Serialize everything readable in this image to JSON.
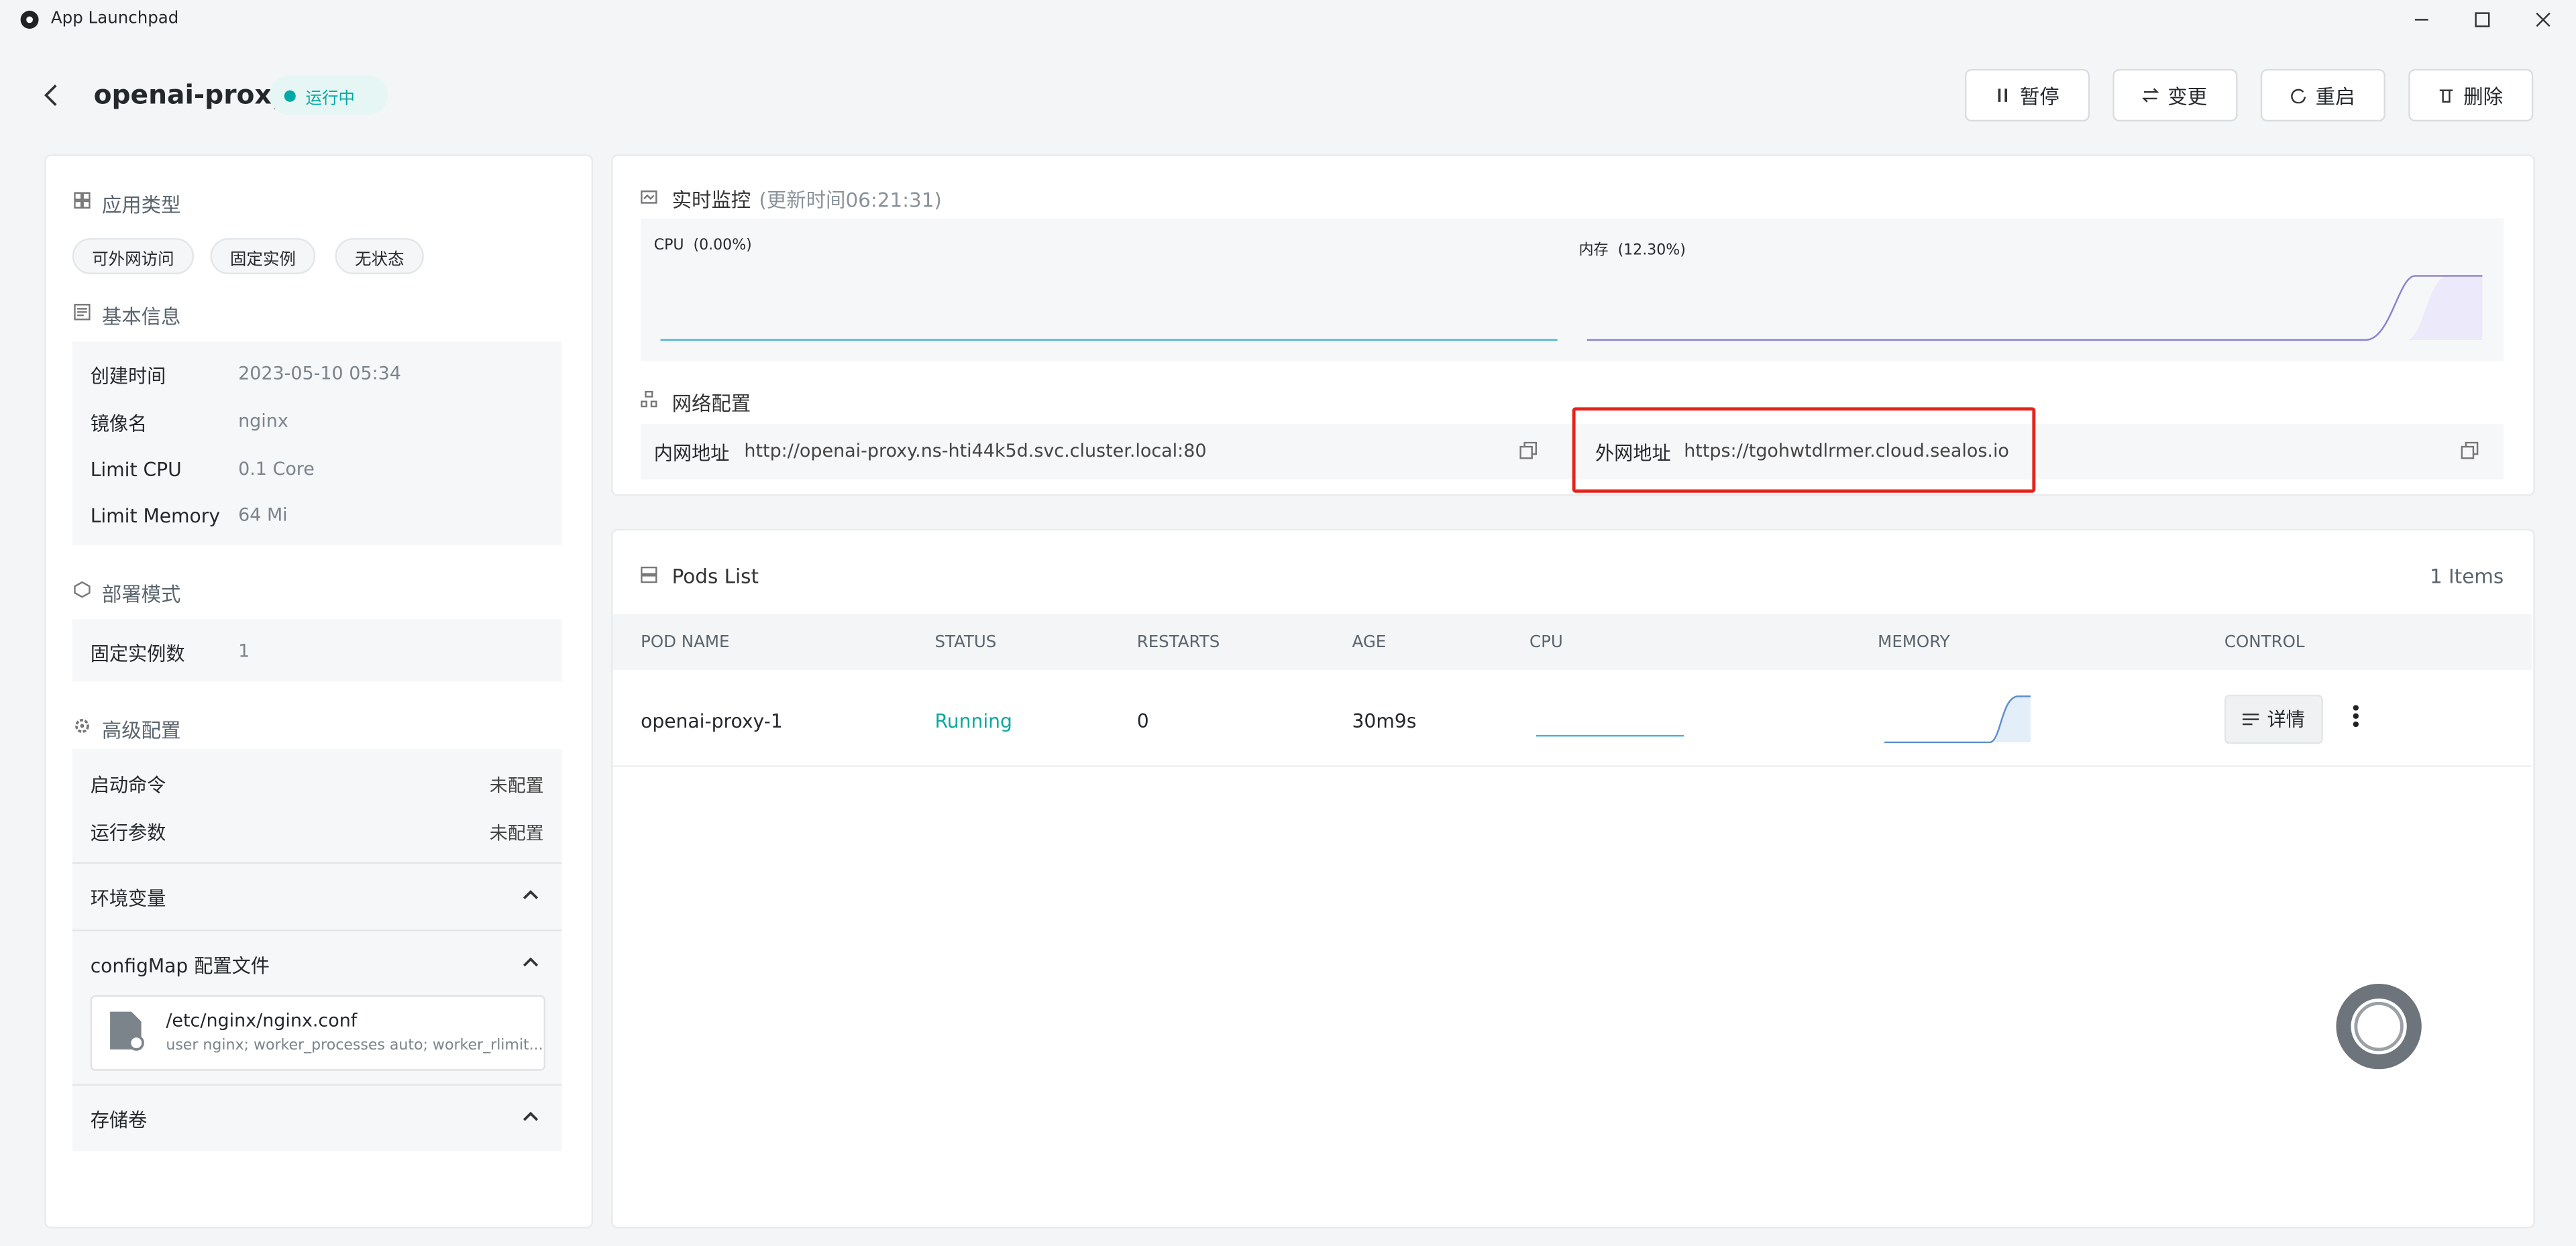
{
  "window": {
    "title": "App Launchpad"
  },
  "header": {
    "name": "openai-proxy",
    "status": "运行中",
    "buttons": [
      "暂停",
      "变更",
      "重启",
      "删除"
    ]
  },
  "app_type": {
    "title": "应用类型",
    "tags": [
      "可外网访问",
      "固定实例",
      "无状态"
    ]
  },
  "basic_info": {
    "title": "基本信息",
    "rows": [
      [
        "创建时间",
        "2023-05-10 05:34"
      ],
      [
        "镜像名",
        "nginx"
      ],
      [
        "Limit CPU",
        "0.1 Core"
      ],
      [
        "Limit Memory",
        "64 Mi"
      ]
    ]
  },
  "deploy": {
    "title": "部署模式",
    "rows": [
      [
        "固定实例数",
        "1"
      ]
    ]
  },
  "advanced": {
    "title": "高级配置",
    "rows": [
      [
        "启动命令",
        "未配置"
      ],
      [
        "运行参数",
        "未配置"
      ]
    ],
    "sections": [
      "环境变量",
      "configMap 配置文件",
      "存储卷"
    ],
    "config_file": {
      "path": "/etc/nginx/nginx.conf",
      "preview": "user nginx; worker_processes auto; worker_rlimit..."
    }
  },
  "monitor": {
    "title": "实时监控",
    "updated": "(更新时间06:21:31)",
    "cpu_label": "CPU  (0.00%)",
    "memory_label": "内存  (12.30%)"
  },
  "network": {
    "title": "网络配置",
    "internal_label": "内网地址",
    "internal_url": "http://openai-proxy.ns-hti44k5d.svc.cluster.local:80",
    "external_label": "外网地址",
    "external_url": "https://tgohwtdlrmer.cloud.sealos.io"
  },
  "pods": {
    "title": "Pods List",
    "count": "1 Items",
    "columns": [
      "POD NAME",
      "STATUS",
      "RESTARTS",
      "AGE",
      "CPU",
      "MEMORY",
      "CONTROL"
    ],
    "rows": [
      [
        "openai-proxy-1",
        "Running",
        "0",
        "30m9s"
      ]
    ],
    "detail_button": "详情"
  }
}
